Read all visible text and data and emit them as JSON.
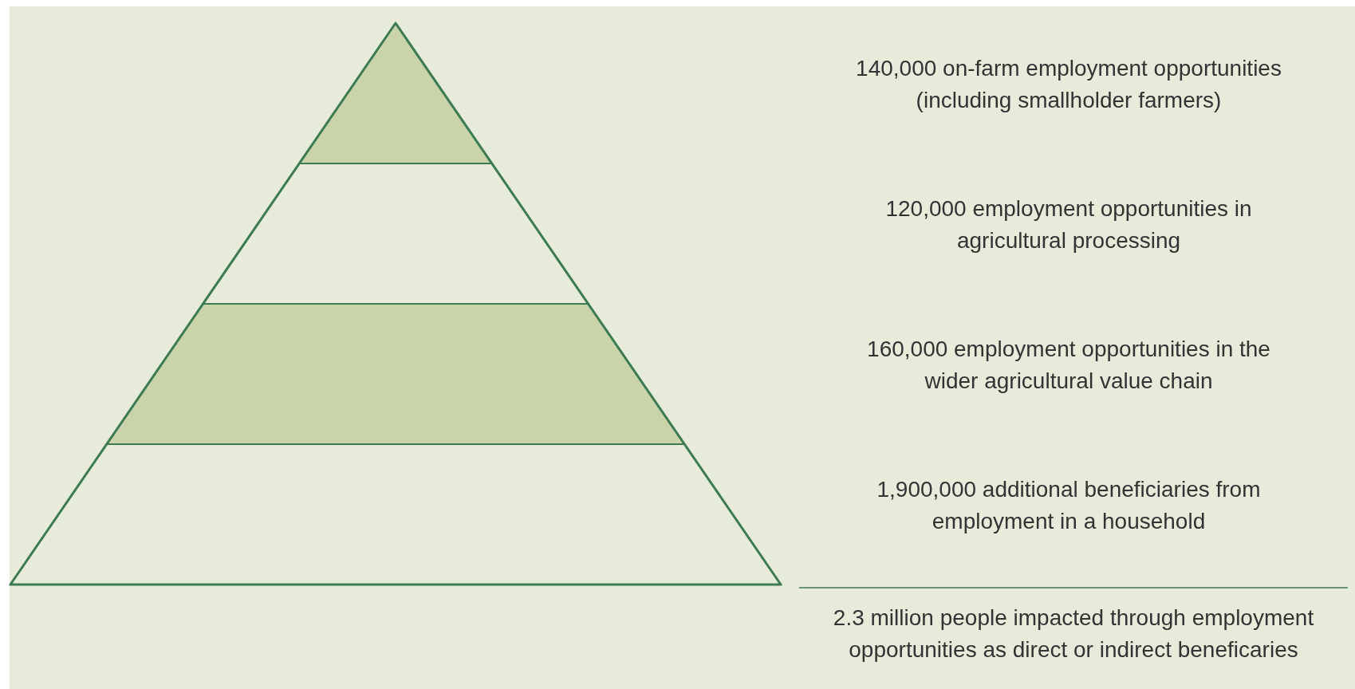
{
  "chart_data": {
    "type": "other",
    "categories": [
      "on-farm employment opportunities\n(including smallholder farmers)",
      "employment opportunities in\nagricultural processing",
      "employment opportunities in the\nwider agricultural value chain",
      "additional beneficiaries from\nemployment in a household"
    ],
    "values": [
      140000,
      120000,
      160000,
      1900000
    ],
    "value_labels": [
      "140,000",
      "120,000",
      "160,000",
      "1,900,000"
    ],
    "colors": [
      "#c9d4aa",
      "#e6ebda",
      "#c9d4aa",
      "#e6ebda"
    ],
    "annotations": [
      "2.3 million people impacted through employment\nopportunities as direct or indirect beneficaries"
    ]
  }
}
